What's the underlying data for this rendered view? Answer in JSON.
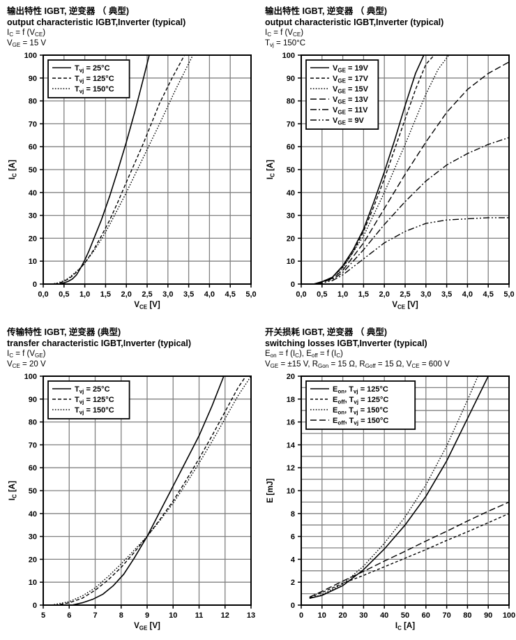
{
  "styles": {
    "background": "#ffffff",
    "grid_color": "#808080",
    "axis_color": "#000000",
    "curve_color": "#000000",
    "text_color": "#000000"
  },
  "chart_data": [
    {
      "type": "line",
      "title_zh": "输出特性 IGBT, 逆变器 （ 典型)",
      "title_en": "output characteristic IGBT,Inverter (typical)",
      "cond1": "I_{C} = f (V_{CE})",
      "cond2": "V_{GE} = 15 V",
      "xlabel": "V_{CE} [V]",
      "ylabel": "I_{C} [A]",
      "xlim": [
        0,
        5
      ],
      "ylim": [
        0,
        100
      ],
      "xgrid": 0.5,
      "ygrid": 10,
      "xtick_vals": [
        0,
        0.5,
        1,
        1.5,
        2,
        2.5,
        3,
        3.5,
        4,
        4.5,
        5
      ],
      "xtick_labels": [
        "0,0",
        "0,5",
        "1,0",
        "1,5",
        "2,0",
        "2,5",
        "3,0",
        "3,5",
        "4,0",
        "4,5",
        "5,0"
      ],
      "ytick_vals": [
        0,
        10,
        20,
        30,
        40,
        50,
        60,
        70,
        80,
        90,
        100
      ],
      "ytick_labels": [
        "0",
        "10",
        "20",
        "30",
        "40",
        "50",
        "60",
        "70",
        "80",
        "90",
        "100"
      ],
      "legend": [
        {
          "label": "T_{vj} = 25°C",
          "dash": "solid"
        },
        {
          "label": "T_{vj} = 125°C",
          "dash": "dash"
        },
        {
          "label": "T_{vj} = 150°C",
          "dash": "dot"
        }
      ],
      "series": [
        {
          "name": "Tvj 25C",
          "dash": "solid",
          "x": [
            0,
            0.35,
            0.5,
            0.6,
            0.7,
            0.8,
            0.9,
            1.0,
            1.1,
            1.2,
            1.4,
            1.6,
            1.8,
            2.0,
            2.2,
            2.4,
            2.55
          ],
          "y": [
            0,
            0,
            0.5,
            1.2,
            2.2,
            4,
            7,
            10.5,
            14.5,
            19,
            28,
            38.5,
            50,
            62,
            75,
            89,
            100
          ]
        },
        {
          "name": "Tvj 125C",
          "dash": "dash",
          "x": [
            0,
            0.25,
            0.4,
            0.5,
            0.6,
            0.7,
            0.8,
            0.9,
            1.0,
            1.2,
            1.4,
            1.6,
            1.8,
            2.0,
            2.4,
            2.8,
            3.1,
            3.4
          ],
          "y": [
            0,
            0,
            0.5,
            1.2,
            2.2,
            3.5,
            5.2,
            7,
            9.2,
            14.5,
            21,
            28,
            36,
            44.5,
            61,
            79,
            90,
            100
          ]
        },
        {
          "name": "Tvj 150C",
          "dash": "dot",
          "x": [
            0,
            0.2,
            0.35,
            0.5,
            0.6,
            0.7,
            0.8,
            0.9,
            1.0,
            1.2,
            1.4,
            1.6,
            1.8,
            2.0,
            2.4,
            2.8,
            3.2,
            3.6
          ],
          "y": [
            0,
            0,
            0.5,
            1.5,
            2.5,
            4,
            5.5,
            7.2,
            9.2,
            14,
            19.5,
            26,
            33,
            40,
            55,
            70,
            85.5,
            100
          ]
        }
      ]
    },
    {
      "type": "line",
      "title_zh": "输出特性 IGBT, 逆变器 （ 典型)",
      "title_en": "output characteristic IGBT,Inverter (typical)",
      "cond1": "I_{C} = f (V_{CE})",
      "cond2": "T_{vj} = 150°C",
      "xlabel": "V_{CE} [V]",
      "ylabel": "I_{C} [A]",
      "xlim": [
        0,
        5
      ],
      "ylim": [
        0,
        100
      ],
      "xgrid": 0.5,
      "ygrid": 10,
      "xtick_vals": [
        0,
        0.5,
        1,
        1.5,
        2,
        2.5,
        3,
        3.5,
        4,
        4.5,
        5
      ],
      "xtick_labels": [
        "0,0",
        "0,5",
        "1,0",
        "1,5",
        "2,0",
        "2,5",
        "3,0",
        "3,5",
        "4,0",
        "4,5",
        "5,0"
      ],
      "ytick_vals": [
        0,
        10,
        20,
        30,
        40,
        50,
        60,
        70,
        80,
        90,
        100
      ],
      "ytick_labels": [
        "0",
        "10",
        "20",
        "30",
        "40",
        "50",
        "60",
        "70",
        "80",
        "90",
        "100"
      ],
      "legend": [
        {
          "label": "V_{GE} = 19V",
          "dash": "solid"
        },
        {
          "label": "V_{GE} = 17V",
          "dash": "dash"
        },
        {
          "label": "V_{GE} = 15V",
          "dash": "dot"
        },
        {
          "label": "V_{GE} = 13V",
          "dash": "longdash"
        },
        {
          "label": "V_{GE} = 11V",
          "dash": "dashdot"
        },
        {
          "label": "V_{GE} =  9V",
          "dash": "dashdotdot"
        }
      ],
      "series": [
        {
          "name": "VGE 19V",
          "dash": "solid",
          "x": [
            0,
            0.3,
            0.5,
            0.75,
            1.0,
            1.25,
            1.5,
            1.75,
            2.0,
            2.25,
            2.5,
            2.75,
            2.95
          ],
          "y": [
            0,
            0,
            1,
            3,
            8,
            15,
            24,
            36,
            49,
            63,
            78,
            92,
            100
          ]
        },
        {
          "name": "VGE 17V",
          "dash": "dash",
          "x": [
            0,
            0.3,
            0.5,
            0.75,
            1.0,
            1.25,
            1.5,
            1.75,
            2.0,
            2.25,
            2.5,
            2.75,
            3.0,
            3.2
          ],
          "y": [
            0,
            0,
            1,
            3,
            7.5,
            14,
            23,
            34,
            46,
            59,
            72,
            85,
            96,
            100
          ]
        },
        {
          "name": "VGE 15V",
          "dash": "dot",
          "x": [
            0,
            0.3,
            0.5,
            0.75,
            1.0,
            1.5,
            2.0,
            2.5,
            3.0,
            3.3,
            3.55
          ],
          "y": [
            0,
            0,
            1,
            3,
            7,
            21,
            40,
            61,
            83,
            94,
            100
          ]
        },
        {
          "name": "VGE 13V",
          "dash": "longdash",
          "x": [
            0,
            0.3,
            0.5,
            0.75,
            1.0,
            1.5,
            2.0,
            2.5,
            3.0,
            3.5,
            4.0,
            4.5,
            5.0
          ],
          "y": [
            0,
            0,
            1,
            2.5,
            6,
            18,
            33,
            48,
            62,
            75,
            85,
            92,
            97
          ]
        },
        {
          "name": "VGE 11V",
          "dash": "dashdot",
          "x": [
            0,
            0.3,
            0.5,
            0.75,
            1.0,
            1.5,
            2.0,
            2.5,
            3.0,
            3.5,
            4.0,
            4.5,
            5.0
          ],
          "y": [
            0,
            0,
            1,
            2,
            5,
            15,
            26,
            36,
            45,
            52,
            57,
            61,
            64
          ]
        },
        {
          "name": "VGE 9V",
          "dash": "dashdotdot",
          "x": [
            0,
            0.3,
            0.5,
            0.75,
            1.0,
            1.5,
            2.0,
            2.5,
            3.0,
            3.5,
            4.0,
            4.5,
            5.0
          ],
          "y": [
            0,
            0,
            0.5,
            1.5,
            4,
            11,
            18,
            23,
            26.5,
            28,
            28.5,
            29,
            29
          ]
        }
      ]
    },
    {
      "type": "line",
      "title_zh": "传输特性 IGBT, 逆变器 (典型)",
      "title_en": "transfer characteristic IGBT,Inverter (typical)",
      "cond1": "I_{C} = f (V_{GE})",
      "cond2": "V_{CE} = 20 V",
      "xlabel": "V_{GE} [V]",
      "ylabel": "I_{C} [A]",
      "xlim": [
        5,
        13
      ],
      "ylim": [
        0,
        100
      ],
      "xgrid": 1,
      "ygrid": 10,
      "xtick_vals": [
        5,
        6,
        7,
        8,
        9,
        10,
        11,
        12,
        13
      ],
      "xtick_labels": [
        "5",
        "6",
        "7",
        "8",
        "9",
        "10",
        "11",
        "12",
        "13"
      ],
      "ytick_vals": [
        0,
        10,
        20,
        30,
        40,
        50,
        60,
        70,
        80,
        90,
        100
      ],
      "ytick_labels": [
        "0",
        "10",
        "20",
        "30",
        "40",
        "50",
        "60",
        "70",
        "80",
        "90",
        "100"
      ],
      "legend": [
        {
          "label": "T_{vj} = 25°C",
          "dash": "solid"
        },
        {
          "label": "T_{vj} = 125°C",
          "dash": "dash"
        },
        {
          "label": "T_{vj} = 150°C",
          "dash": "dot"
        }
      ],
      "series": [
        {
          "name": "Tvj 25C",
          "dash": "solid",
          "x": [
            5,
            6.1,
            6.5,
            6.9,
            7.3,
            7.7,
            8.1,
            8.5,
            9.0,
            9.5,
            10,
            10.5,
            11,
            11.5,
            11.95
          ],
          "y": [
            0,
            0,
            1,
            2.5,
            4.8,
            8.5,
            13.5,
            20.5,
            30,
            41,
            52,
            63,
            74,
            87,
            100
          ]
        },
        {
          "name": "Tvj 125C",
          "dash": "dash",
          "x": [
            5,
            5.5,
            6,
            6.5,
            7,
            7.5,
            8,
            8.5,
            9,
            9.5,
            10,
            10.5,
            11,
            11.5,
            12,
            12.5,
            12.8
          ],
          "y": [
            0,
            0,
            1,
            3,
            6.5,
            11,
            16.5,
            23,
            30,
            37.5,
            45.5,
            54.5,
            64,
            74,
            84.5,
            95,
            100
          ]
        },
        {
          "name": "Tvj 150C",
          "dash": "dot",
          "x": [
            5,
            5.3,
            6,
            6.5,
            7,
            7.5,
            8,
            8.5,
            9,
            9.5,
            10,
            10.5,
            11,
            11.5,
            12,
            12.5,
            13
          ],
          "y": [
            0,
            0,
            1.5,
            4,
            7.5,
            12.5,
            18,
            24,
            30,
            37,
            44.5,
            53,
            62,
            71.5,
            81.5,
            91.5,
            100
          ]
        }
      ]
    },
    {
      "type": "line",
      "title_zh": "开关损耗 IGBT, 逆变器 （ 典型)",
      "title_en": "switching losses IGBT,Inverter (typical)",
      "cond1": "E_{on} = f (I_{C}), E_{off} = f (I_{C})",
      "cond2": "V_{GE} = ±15 V, R_{Gon} = 15 Ω, R_{Goff} = 15 Ω, V_{CE} = 600 V",
      "xlabel": "I_{C} [A]",
      "ylabel": "E [mJ]",
      "xlim": [
        0,
        100
      ],
      "ylim": [
        0,
        20
      ],
      "xgrid": 10,
      "ygrid": 1,
      "xtick_vals": [
        0,
        10,
        20,
        30,
        40,
        50,
        60,
        70,
        80,
        90,
        100
      ],
      "xtick_labels": [
        "0",
        "10",
        "20",
        "30",
        "40",
        "50",
        "60",
        "70",
        "80",
        "90",
        "100"
      ],
      "ytick_vals": [
        0,
        2,
        4,
        6,
        8,
        10,
        12,
        14,
        16,
        18,
        20
      ],
      "ytick_labels": [
        "0",
        "2",
        "4",
        "6",
        "8",
        "10",
        "12",
        "14",
        "16",
        "18",
        "20"
      ],
      "legend": [
        {
          "label": "E_{on}, T_{vj} = 125°C",
          "dash": "solid"
        },
        {
          "label": "E_{off}, T_{vj} = 125°C",
          "dash": "shortdash"
        },
        {
          "label": "E_{on}, T_{vj} = 150°C",
          "dash": "dot"
        },
        {
          "label": "E_{off}, T_{vj} = 150°C",
          "dash": "longdash"
        }
      ],
      "series": [
        {
          "name": "Eon 125C",
          "dash": "solid",
          "x": [
            4,
            10,
            20,
            30,
            40,
            50,
            60,
            70,
            80,
            90
          ],
          "y": [
            0.6,
            0.85,
            1.7,
            3.1,
            4.9,
            7.0,
            9.5,
            12.6,
            16.3,
            20
          ]
        },
        {
          "name": "Eoff 125C",
          "dash": "shortdash",
          "x": [
            4,
            10,
            20,
            30,
            40,
            50,
            60,
            70,
            80,
            90,
            100
          ],
          "y": [
            0.65,
            1.1,
            1.9,
            2.6,
            3.35,
            4.1,
            4.85,
            5.65,
            6.4,
            7.2,
            8.0
          ]
        },
        {
          "name": "Eon 150C",
          "dash": "dot",
          "x": [
            4,
            10,
            20,
            30,
            40,
            50,
            60,
            70,
            80,
            85
          ],
          "y": [
            0.6,
            0.9,
            1.85,
            3.4,
            5.4,
            7.7,
            10.5,
            13.9,
            17.9,
            20
          ]
        },
        {
          "name": "Eoff 150C",
          "dash": "longdash",
          "x": [
            4,
            10,
            20,
            30,
            40,
            50,
            60,
            70,
            80,
            90,
            100
          ],
          "y": [
            0.7,
            1.2,
            2.1,
            2.95,
            3.85,
            4.7,
            5.6,
            6.45,
            7.35,
            8.2,
            9.0
          ]
        }
      ]
    }
  ]
}
